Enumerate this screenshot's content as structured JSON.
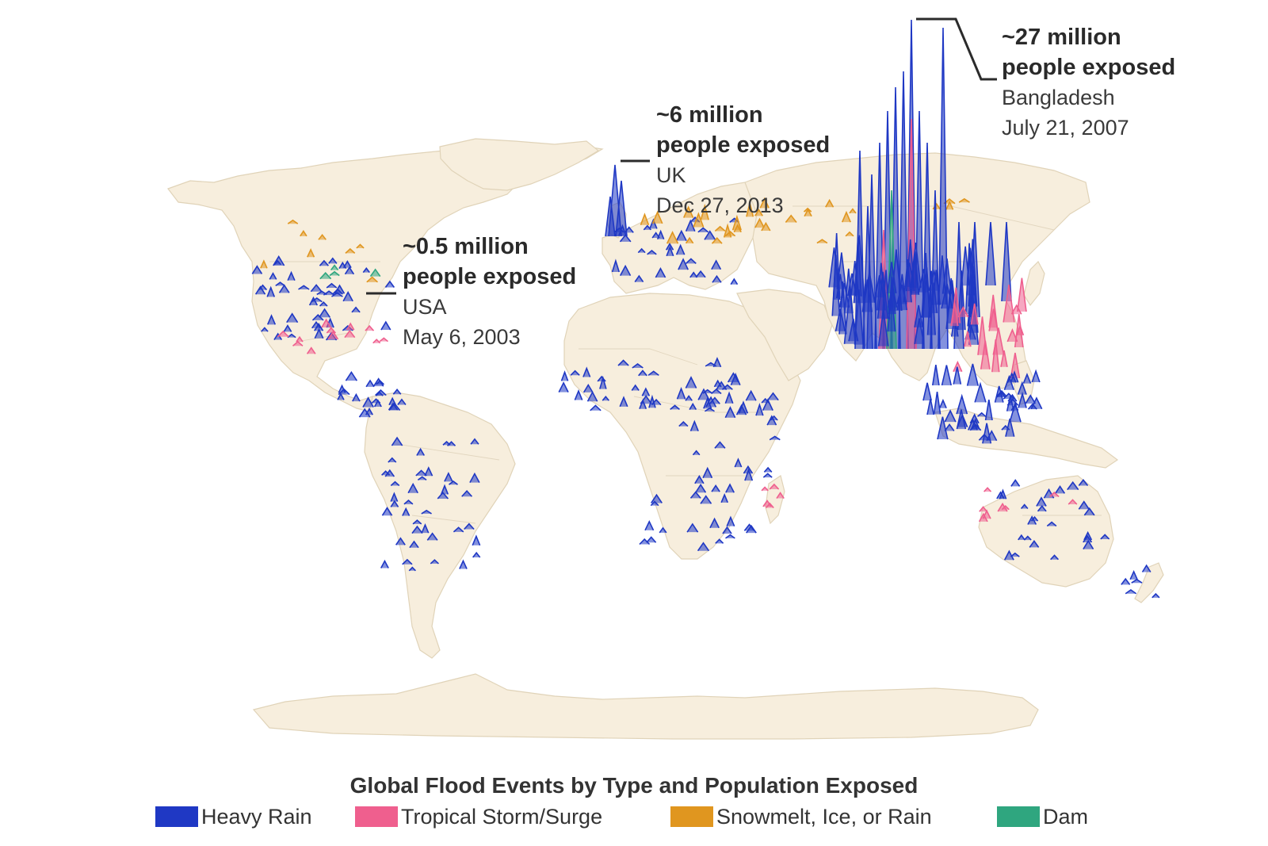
{
  "colors": {
    "heavy_rain": "#1f38c4",
    "tropical_storm": "#ef5f8e",
    "snowmelt": "#e0961f",
    "dam": "#2fa67f",
    "land": "#f7eedd"
  },
  "callouts": [
    {
      "amount": "~27 million",
      "label": "people exposed",
      "place": "Bangladesh",
      "date": "July 21, 2007"
    },
    {
      "amount": "~6 million",
      "label": "people exposed",
      "place": "UK",
      "date": "Dec 27, 2013"
    },
    {
      "amount": "~0.5 million",
      "label": "people exposed",
      "place": "USA",
      "date": "May 6, 2003"
    }
  ],
  "legend": {
    "title": "Global Flood Events by Type and Population Exposed",
    "items": [
      {
        "label": "Heavy Rain",
        "color": "#1f38c4"
      },
      {
        "label": "Tropical Storm/Surge",
        "color": "#ef5f8e"
      },
      {
        "label": "Snowmelt, Ice, or Rain",
        "color": "#e0961f"
      },
      {
        "label": "Dam",
        "color": "#2fa67f"
      }
    ]
  }
}
